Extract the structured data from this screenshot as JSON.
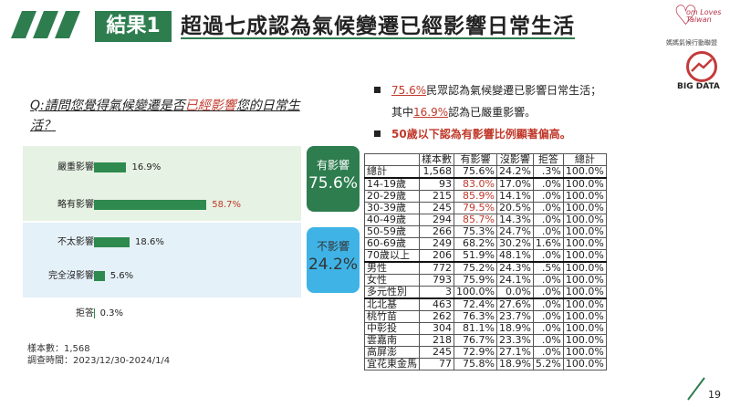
{
  "header": {
    "title_tag": "結果1",
    "title_main": "超過七成認為氣候變遷已經影響日常生活"
  },
  "logos": {
    "org_logo_text": "om Loves Taiwan",
    "org_subtitle": "媽媽氣候行動聯盟",
    "bigdata_label": "BIG DATA"
  },
  "question": {
    "prefix": "Q:請問您覺得氣候變遷是否",
    "highlight": "已經影響",
    "suffix": "您的日常生活？"
  },
  "badges": {
    "yes_label": "有影響",
    "yes_value": "75.6%",
    "no_label": "不影響",
    "no_value": "24.2%"
  },
  "bullets": {
    "line1_pct": "75.6%",
    "line1_text": "民眾認為氣候變遷已影響日常生活；",
    "line2_prefix": "其中",
    "line2_pct": "16.9%",
    "line2_text": "認為已嚴重影響。",
    "line3_text": "50歲以下認為有影響比例顯著偏高。"
  },
  "chart_data": {
    "type": "bar",
    "orientation": "horizontal",
    "categories": [
      "嚴重影響",
      "略有影響",
      "不太影響",
      "完全沒影響",
      "拒答"
    ],
    "values": [
      16.9,
      58.7,
      18.6,
      5.6,
      0.3
    ],
    "value_labels": [
      "16.9%",
      "58.7%",
      "18.6%",
      "5.6%",
      "0.3%"
    ],
    "unit": "%",
    "colors": {
      "bar": "#2e8a4e",
      "highlight_label": "#c0392b"
    }
  },
  "table": {
    "headers": [
      "",
      "樣本數",
      "有影響",
      "沒影響",
      "拒答",
      "總計"
    ],
    "rows": [
      {
        "label": "總計",
        "cells": [
          "1,568",
          "75.6%",
          "24.2%",
          ".3%",
          "100.0%"
        ],
        "hi": false,
        "sep": false
      },
      {
        "label": "14-19歲",
        "cells": [
          "93",
          "83.0%",
          "17.0%",
          ".0%",
          "100.0%"
        ],
        "hi": true,
        "sep": true
      },
      {
        "label": "20-29歲",
        "cells": [
          "215",
          "85.9%",
          "14.1%",
          ".0%",
          "100.0%"
        ],
        "hi": true,
        "sep": false
      },
      {
        "label": "30-39歲",
        "cells": [
          "245",
          "79.5%",
          "20.5%",
          ".0%",
          "100.0%"
        ],
        "hi": true,
        "sep": false
      },
      {
        "label": "40-49歲",
        "cells": [
          "294",
          "85.7%",
          "14.3%",
          ".0%",
          "100.0%"
        ],
        "hi": true,
        "sep": false
      },
      {
        "label": "50-59歲",
        "cells": [
          "266",
          "75.3%",
          "24.7%",
          ".0%",
          "100.0%"
        ],
        "hi": false,
        "sep": false
      },
      {
        "label": "60-69歲",
        "cells": [
          "249",
          "68.2%",
          "30.2%",
          "1.6%",
          "100.0%"
        ],
        "hi": false,
        "sep": false
      },
      {
        "label": "70歲以上",
        "cells": [
          "206",
          "51.9%",
          "48.1%",
          ".0%",
          "100.0%"
        ],
        "hi": false,
        "sep": false
      },
      {
        "label": "男性",
        "cells": [
          "772",
          "75.2%",
          "24.3%",
          ".5%",
          "100.0%"
        ],
        "hi": false,
        "sep": true
      },
      {
        "label": "女性",
        "cells": [
          "793",
          "75.9%",
          "24.1%",
          ".0%",
          "100.0%"
        ],
        "hi": false,
        "sep": false
      },
      {
        "label": "多元性別",
        "cells": [
          "3",
          "100.0%",
          "0.0%",
          ".0%",
          "100.0%"
        ],
        "hi": false,
        "sep": false
      },
      {
        "label": "北北基",
        "cells": [
          "463",
          "72.4%",
          "27.6%",
          ".0%",
          "100.0%"
        ],
        "hi": false,
        "sep": true
      },
      {
        "label": "桃竹苗",
        "cells": [
          "262",
          "76.3%",
          "23.7%",
          ".0%",
          "100.0%"
        ],
        "hi": false,
        "sep": false
      },
      {
        "label": "中彰投",
        "cells": [
          "304",
          "81.1%",
          "18.9%",
          ".0%",
          "100.0%"
        ],
        "hi": false,
        "sep": false
      },
      {
        "label": "雲嘉南",
        "cells": [
          "218",
          "76.7%",
          "23.3%",
          ".0%",
          "100.0%"
        ],
        "hi": false,
        "sep": false
      },
      {
        "label": "高屏澎",
        "cells": [
          "245",
          "72.9%",
          "27.1%",
          ".0%",
          "100.0%"
        ],
        "hi": false,
        "sep": false
      },
      {
        "label": "宜花東金馬",
        "cells": [
          "77",
          "75.8%",
          "18.9%",
          "5.2%",
          "100.0%"
        ],
        "hi": false,
        "sep": false
      }
    ]
  },
  "footer": {
    "sample": "樣本數：1,568",
    "period": "調查時間：2023/12/30-2024/1/4"
  },
  "page_number": "19"
}
